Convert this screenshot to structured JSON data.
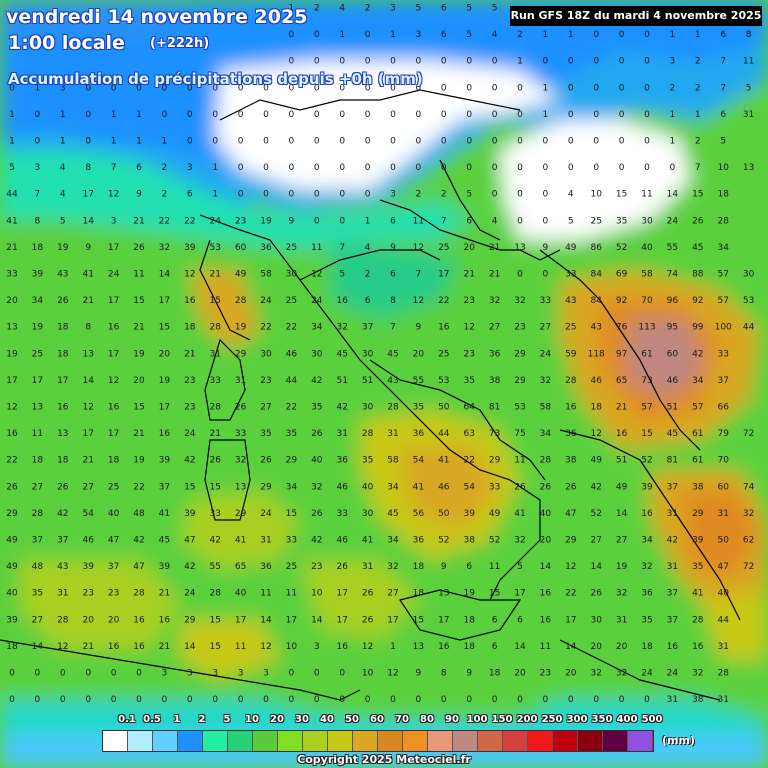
{
  "header": {
    "date": "vendredi 14 novembre 2025",
    "time": "1:00 locale",
    "offset": "(+222h)",
    "subtitle": "Accumulation de précipitations depuis +0h (mm)",
    "run": "Run GFS 18Z du mardi 4 novembre 2025"
  },
  "legend": {
    "thresholds": [
      "0.1",
      "0.5",
      "1",
      "2",
      "5",
      "10",
      "20",
      "30",
      "40",
      "50",
      "60",
      "70",
      "80",
      "90",
      "100",
      "150",
      "200",
      "250",
      "300",
      "350",
      "400",
      "500"
    ],
    "colors": [
      "#ffffff",
      "#b4ecff",
      "#5fd0ff",
      "#1e90ff",
      "#20f0a0",
      "#28d078",
      "#58cc3a",
      "#80e020",
      "#a8d020",
      "#c8c818",
      "#d8a820",
      "#d88820",
      "#f09020",
      "#e89878",
      "#c08880",
      "#d06848",
      "#d84040",
      "#f01818",
      "#c00010",
      "#880010",
      "#600040",
      "#9050e0"
    ],
    "unit": "(mm)"
  },
  "copyright": "Copyright 2025 Meteociel.fr",
  "grid_values": [
    [
      0,
      0,
      0,
      0,
      0,
      0,
      0,
      0,
      0,
      0,
      0,
      1,
      2,
      4,
      2,
      3,
      5,
      6,
      5,
      5,
      5,
      2,
      0,
      0,
      1,
      1,
      1,
      1,
      1,
      1,
      1
    ],
    [
      1,
      1,
      1,
      0,
      0,
      0,
      0,
      0,
      0,
      0,
      0,
      0,
      0,
      1,
      0,
      1,
      3,
      6,
      5,
      4,
      2,
      1,
      1,
      0,
      0,
      0,
      1,
      1,
      6,
      8
    ],
    [
      0,
      1,
      0,
      0,
      0,
      0,
      0,
      0,
      0,
      0,
      0,
      0,
      0,
      0,
      0,
      0,
      0,
      0,
      0,
      0,
      1,
      0,
      0,
      0,
      0,
      0,
      3,
      2,
      7,
      11
    ],
    [
      0,
      1,
      3,
      0,
      0,
      0,
      0,
      0,
      0,
      0,
      0,
      0,
      0,
      0,
      0,
      0,
      0,
      0,
      0,
      0,
      0,
      1,
      0,
      0,
      0,
      0,
      2,
      2,
      7,
      5
    ],
    [
      1,
      0,
      1,
      0,
      1,
      1,
      0,
      0,
      0,
      0,
      0,
      0,
      0,
      0,
      0,
      0,
      0,
      0,
      0,
      0,
      0,
      1,
      0,
      0,
      0,
      0,
      1,
      1,
      6,
      31
    ],
    [
      1,
      0,
      1,
      0,
      1,
      1,
      1,
      0,
      0,
      0,
      0,
      0,
      0,
      0,
      0,
      0,
      0,
      0,
      0,
      0,
      0,
      0,
      0,
      0,
      0,
      0,
      1,
      2,
      5
    ],
    [
      5,
      3,
      4,
      8,
      7,
      6,
      2,
      3,
      1,
      0,
      0,
      0,
      0,
      0,
      0,
      0,
      0,
      0,
      0,
      0,
      0,
      0,
      0,
      0,
      0,
      0,
      0,
      7,
      10,
      13
    ],
    [
      44,
      7,
      4,
      17,
      12,
      9,
      2,
      6,
      1,
      0,
      0,
      0,
      0,
      0,
      0,
      3,
      2,
      2,
      5,
      0,
      0,
      0,
      4,
      10,
      15,
      11,
      14,
      15,
      18
    ],
    [
      41,
      8,
      5,
      14,
      3,
      21,
      22,
      22,
      24,
      23,
      19,
      9,
      0,
      0,
      1,
      6,
      11,
      7,
      6,
      4,
      0,
      0,
      5,
      25,
      35,
      30,
      24,
      26,
      28
    ],
    [
      21,
      18,
      19,
      9,
      17,
      26,
      32,
      39,
      53,
      60,
      36,
      25,
      11,
      7,
      4,
      9,
      12,
      25,
      20,
      21,
      13,
      9,
      49,
      86,
      52,
      40,
      55,
      45,
      34
    ],
    [
      33,
      39,
      43,
      41,
      24,
      11,
      14,
      12,
      21,
      49,
      58,
      30,
      12,
      5,
      2,
      6,
      7,
      17,
      21,
      21,
      0,
      0,
      33,
      84,
      69,
      58,
      74,
      88,
      57,
      30,
      32
    ],
    [
      20,
      34,
      26,
      21,
      17,
      15,
      17,
      16,
      15,
      28,
      24,
      25,
      24,
      16,
      6,
      8,
      12,
      22,
      23,
      32,
      32,
      33,
      43,
      84,
      92,
      70,
      96,
      92,
      57,
      53,
      18
    ],
    [
      13,
      19,
      18,
      8,
      16,
      21,
      15,
      18,
      28,
      19,
      22,
      22,
      34,
      32,
      37,
      7,
      9,
      16,
      12,
      27,
      23,
      27,
      25,
      43,
      76,
      113,
      95,
      99,
      100,
      44
    ],
    [
      19,
      25,
      18,
      13,
      17,
      19,
      20,
      21,
      31,
      29,
      30,
      46,
      30,
      45,
      30,
      45,
      20,
      25,
      23,
      36,
      29,
      24,
      59,
      118,
      97,
      61,
      60,
      42,
      33
    ],
    [
      17,
      17,
      17,
      14,
      12,
      20,
      19,
      23,
      33,
      31,
      23,
      44,
      42,
      51,
      51,
      43,
      55,
      53,
      35,
      38,
      29,
      32,
      28,
      46,
      65,
      73,
      46,
      34,
      37
    ],
    [
      12,
      13,
      16,
      12,
      16,
      15,
      17,
      23,
      28,
      26,
      27,
      22,
      35,
      42,
      30,
      28,
      35,
      50,
      64,
      81,
      53,
      58,
      16,
      18,
      21,
      57,
      51,
      57,
      66
    ],
    [
      16,
      11,
      13,
      17,
      17,
      21,
      16,
      24,
      21,
      33,
      35,
      35,
      26,
      31,
      28,
      31,
      36,
      44,
      63,
      73,
      75,
      34,
      36,
      12,
      16,
      15,
      45,
      61,
      79,
      72,
      50
    ],
    [
      22,
      18,
      18,
      21,
      18,
      19,
      39,
      42,
      26,
      32,
      26,
      29,
      40,
      36,
      35,
      58,
      54,
      41,
      22,
      29,
      11,
      28,
      38,
      49,
      51,
      52,
      81,
      61,
      70
    ],
    [
      26,
      27,
      26,
      27,
      25,
      22,
      37,
      15,
      15,
      13,
      29,
      34,
      32,
      46,
      40,
      34,
      41,
      46,
      54,
      33,
      26,
      26,
      26,
      42,
      49,
      39,
      37,
      38,
      60,
      74
    ],
    [
      29,
      28,
      42,
      54,
      40,
      48,
      41,
      39,
      33,
      29,
      24,
      15,
      26,
      33,
      30,
      45,
      56,
      50,
      39,
      49,
      41,
      40,
      47,
      52,
      14,
      16,
      31,
      29,
      31,
      32,
      53
    ],
    [
      49,
      37,
      37,
      46,
      47,
      42,
      45,
      47,
      42,
      41,
      31,
      33,
      42,
      46,
      41,
      34,
      36,
      52,
      38,
      52,
      32,
      20,
      29,
      27,
      27,
      34,
      42,
      39,
      50,
      62
    ],
    [
      49,
      48,
      43,
      39,
      37,
      47,
      39,
      42,
      55,
      65,
      36,
      25,
      23,
      26,
      31,
      32,
      18,
      9,
      6,
      11,
      5,
      14,
      12,
      14,
      19,
      32,
      31,
      35,
      47,
      72
    ],
    [
      40,
      35,
      31,
      23,
      23,
      28,
      21,
      24,
      28,
      40,
      11,
      11,
      10,
      17,
      26,
      27,
      18,
      13,
      19,
      15,
      17,
      16,
      22,
      26,
      32,
      36,
      37,
      41,
      40
    ],
    [
      39,
      27,
      28,
      20,
      20,
      16,
      16,
      29,
      15,
      17,
      14,
      17,
      14,
      17,
      26,
      17,
      15,
      17,
      18,
      6,
      6,
      16,
      17,
      30,
      31,
      35,
      37,
      28,
      44
    ],
    [
      18,
      14,
      12,
      21,
      16,
      16,
      21,
      14,
      15,
      11,
      12,
      10,
      3,
      16,
      12,
      1,
      13,
      16,
      18,
      6,
      14,
      11,
      14,
      20,
      20,
      18,
      16,
      16,
      31
    ],
    [
      0,
      0,
      0,
      0,
      0,
      0,
      3,
      3,
      3,
      3,
      3,
      0,
      0,
      0,
      10,
      12,
      9,
      8,
      9,
      18,
      20,
      23,
      20,
      32,
      32,
      24,
      24,
      32,
      28
    ],
    [
      0,
      0,
      0,
      0,
      0,
      0,
      0,
      0,
      0,
      0,
      0,
      0,
      0,
      0,
      0,
      0,
      0,
      0,
      0,
      0,
      0,
      0,
      0,
      0,
      0,
      0,
      31,
      38,
      31
    ]
  ]
}
